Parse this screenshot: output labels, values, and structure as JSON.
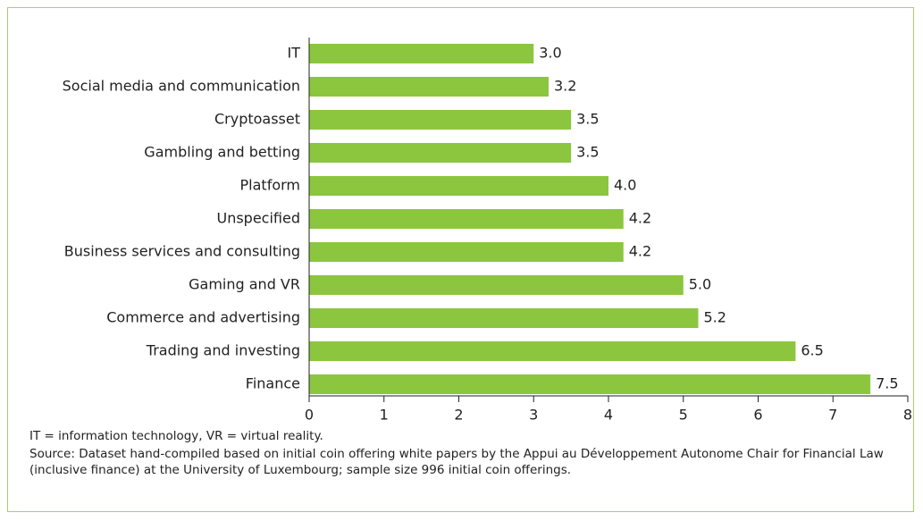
{
  "chart_data": {
    "type": "bar",
    "orientation": "horizontal",
    "categories": [
      "IT",
      "Social media and communication",
      "Cryptoasset",
      "Gambling and betting",
      "Platform",
      "Unspecified",
      "Business services and consulting",
      "Gaming and VR",
      "Commerce and advertising",
      "Trading and investing",
      "Finance"
    ],
    "values": [
      3.0,
      3.2,
      3.5,
      3.5,
      4.0,
      4.2,
      4.2,
      5.0,
      5.2,
      6.5,
      7.5
    ],
    "value_labels": [
      "3.0",
      "3.2",
      "3.5",
      "3.5",
      "4.0",
      "4.2",
      "4.2",
      "5.0",
      "5.2",
      "6.5",
      "7.5"
    ],
    "color": "#8cc63f",
    "xlim": [
      0,
      8
    ],
    "xticks": [
      0,
      1,
      2,
      3,
      4,
      5,
      6,
      7,
      8
    ],
    "note": "IT = information technology, VR = virtual reality.",
    "source": "Source: Dataset hand-compiled based on initial coin offering white papers by the Appui au Développement Autonome Chair for Financial Law (inclusive finance) at the University of Luxembourg; sample size 996 initial coin offerings."
  }
}
